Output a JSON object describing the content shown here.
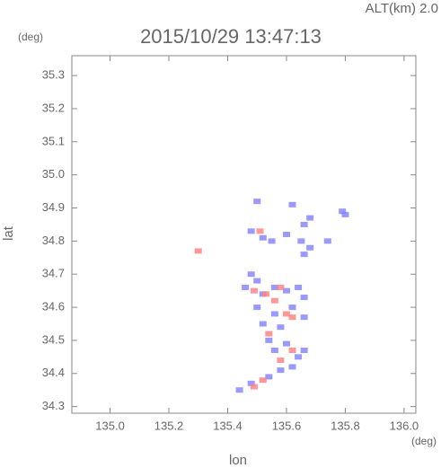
{
  "chart_data": {
    "type": "scatter",
    "title": "2015/10/29 13:47:13",
    "subtitle": "ALT(km) 2.0",
    "y_unit": "(deg)",
    "x_unit": "(deg)",
    "x_label": "lon",
    "y_label": "lat",
    "xlim": [
      134.87,
      136.04
    ],
    "ylim": [
      34.28,
      35.36
    ],
    "xticks": [
      {
        "value": 135,
        "label": "135.0"
      },
      135.2,
      135.4,
      135.6,
      135.8,
      {
        "value": 136,
        "label": "136.0"
      }
    ],
    "yticks": [
      34.3,
      34.4,
      34.5,
      34.6,
      34.7,
      34.8,
      34.9,
      {
        "value": 35,
        "label": "35.0"
      },
      35.1,
      35.2,
      35.3
    ],
    "series": [
      {
        "color": "#7f7fff",
        "x": [
          135.5,
          135.62,
          135.66,
          135.68,
          135.79,
          135.8,
          135.48,
          135.52,
          135.55,
          135.6,
          135.65,
          135.68,
          135.66,
          135.74,
          135.48,
          135.5,
          135.46,
          135.52,
          135.56,
          135.6,
          135.64,
          135.66,
          135.5,
          135.56,
          135.62,
          135.66,
          135.52,
          135.58,
          135.54,
          135.6,
          135.56,
          135.64,
          135.66,
          135.62,
          135.58,
          135.54,
          135.48,
          135.44
        ],
        "values": [
          34.92,
          34.91,
          34.85,
          34.87,
          34.89,
          34.88,
          34.83,
          34.81,
          34.8,
          34.82,
          34.8,
          34.78,
          34.76,
          34.8,
          34.7,
          34.68,
          34.66,
          34.64,
          34.66,
          34.65,
          34.66,
          34.63,
          34.6,
          34.58,
          34.6,
          34.57,
          34.55,
          34.54,
          34.5,
          34.49,
          34.47,
          34.45,
          34.47,
          34.42,
          34.41,
          34.39,
          34.37,
          34.35
        ]
      },
      {
        "color": "#ff7f7f",
        "x": [
          135.51,
          135.3,
          135.49,
          135.53,
          135.58,
          135.56,
          135.62,
          135.6,
          135.54,
          135.62,
          135.58,
          135.52,
          135.49
        ],
        "values": [
          34.83,
          34.77,
          34.65,
          34.64,
          34.66,
          34.62,
          34.57,
          34.58,
          34.52,
          34.47,
          34.44,
          34.38,
          34.36
        ]
      }
    ]
  }
}
